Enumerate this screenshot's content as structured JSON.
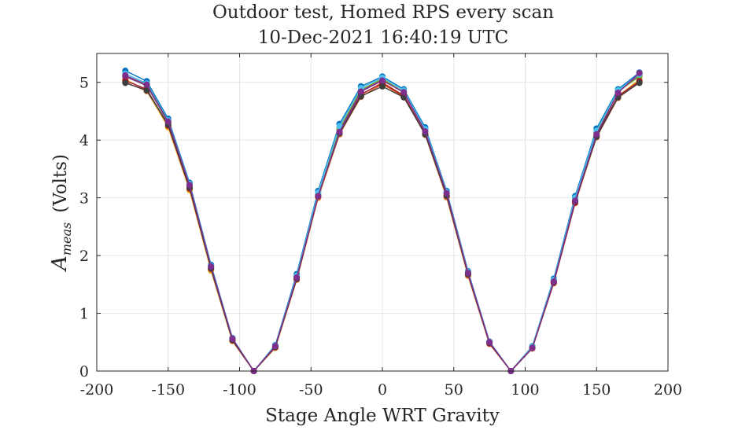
{
  "chart_data": {
    "type": "line",
    "title": [
      "Outdoor test, Homed RPS every scan",
      "10-Dec-2021 16:40:19 UTC"
    ],
    "xlabel": "Stage Angle WRT Gravity",
    "ylabel_main": "A",
    "ylabel_sub": "meas",
    "ylabel_units": "(Volts)",
    "xlim": [
      -200,
      200
    ],
    "ylim": [
      0,
      5.5
    ],
    "xticks": [
      -200,
      -150,
      -100,
      -50,
      0,
      50,
      100,
      150,
      200
    ],
    "yticks": [
      0,
      1,
      2,
      3,
      4,
      5
    ],
    "grid": true,
    "x": [
      -180,
      -165,
      -150,
      -135,
      -120,
      -105,
      -90,
      -75,
      -60,
      -45,
      -30,
      -15,
      0,
      15,
      30,
      45,
      60,
      75,
      90,
      105,
      120,
      135,
      150,
      165,
      180
    ],
    "series": [
      {
        "color": "#0072bd",
        "values": [
          5.2,
          5.02,
          4.37,
          3.26,
          1.84,
          0.57,
          0.0,
          0.45,
          1.68,
          3.12,
          4.28,
          4.93,
          5.1,
          4.88,
          4.22,
          3.12,
          1.73,
          0.51,
          0.0,
          0.43,
          1.6,
          3.03,
          4.2,
          4.88,
          5.17
        ]
      },
      {
        "color": "#d95319",
        "values": [
          5.0,
          4.85,
          4.23,
          3.14,
          1.75,
          0.52,
          0.0,
          0.41,
          1.58,
          3.0,
          4.1,
          4.75,
          4.97,
          4.75,
          4.09,
          3.01,
          1.65,
          0.47,
          0.0,
          0.39,
          1.52,
          2.91,
          4.05,
          4.73,
          5.0
        ]
      },
      {
        "color": "#edb120",
        "values": [
          5.05,
          4.86,
          4.22,
          3.13,
          1.74,
          0.52,
          0.0,
          0.4,
          1.58,
          3.01,
          4.12,
          4.78,
          5.0,
          4.77,
          4.1,
          3.02,
          1.66,
          0.48,
          0.0,
          0.4,
          1.54,
          2.93,
          4.07,
          4.76,
          5.05
        ]
      },
      {
        "color": "#7e2f8e",
        "values": [
          5.1,
          4.94,
          4.3,
          3.21,
          1.79,
          0.55,
          0.0,
          0.43,
          1.62,
          3.05,
          4.18,
          4.85,
          5.05,
          4.82,
          4.15,
          3.07,
          1.7,
          0.5,
          0.0,
          0.41,
          1.56,
          2.96,
          4.12,
          4.83,
          5.12
        ]
      },
      {
        "color": "#77ac30",
        "values": [
          5.12,
          4.95,
          4.31,
          3.22,
          1.8,
          0.55,
          0.0,
          0.43,
          1.63,
          3.07,
          4.2,
          4.87,
          5.06,
          4.83,
          4.17,
          3.08,
          1.7,
          0.5,
          0.0,
          0.42,
          1.57,
          2.97,
          4.13,
          4.84,
          5.1
        ]
      },
      {
        "color": "#4dbeee",
        "values": [
          5.15,
          4.98,
          4.34,
          3.24,
          1.82,
          0.56,
          0.0,
          0.44,
          1.65,
          3.09,
          4.24,
          4.9,
          5.08,
          4.86,
          4.19,
          3.1,
          1.72,
          0.51,
          0.0,
          0.42,
          1.58,
          3.0,
          4.16,
          4.86,
          5.14
        ]
      },
      {
        "color": "#a2142f",
        "values": [
          5.03,
          4.88,
          4.25,
          3.16,
          1.77,
          0.53,
          0.0,
          0.41,
          1.59,
          3.02,
          4.13,
          4.79,
          4.99,
          4.77,
          4.11,
          3.03,
          1.67,
          0.48,
          0.0,
          0.4,
          1.53,
          2.92,
          4.08,
          4.76,
          5.02
        ]
      },
      {
        "color": "#3f3f3f",
        "values": [
          4.99,
          4.86,
          4.27,
          3.18,
          1.78,
          0.54,
          0.0,
          0.42,
          1.6,
          3.03,
          4.12,
          4.76,
          4.93,
          4.74,
          4.1,
          3.04,
          1.68,
          0.49,
          0.0,
          0.4,
          1.54,
          2.94,
          4.06,
          4.74,
          4.99
        ]
      },
      {
        "color": "#7e2f8e",
        "values": [
          5.12,
          4.96,
          4.32,
          3.22,
          1.81,
          0.56,
          0.0,
          0.43,
          1.62,
          3.03,
          4.14,
          4.84,
          5.03,
          4.83,
          4.15,
          3.08,
          1.7,
          0.5,
          0.0,
          0.4,
          1.55,
          2.95,
          4.1,
          4.82,
          5.16
        ]
      }
    ]
  }
}
